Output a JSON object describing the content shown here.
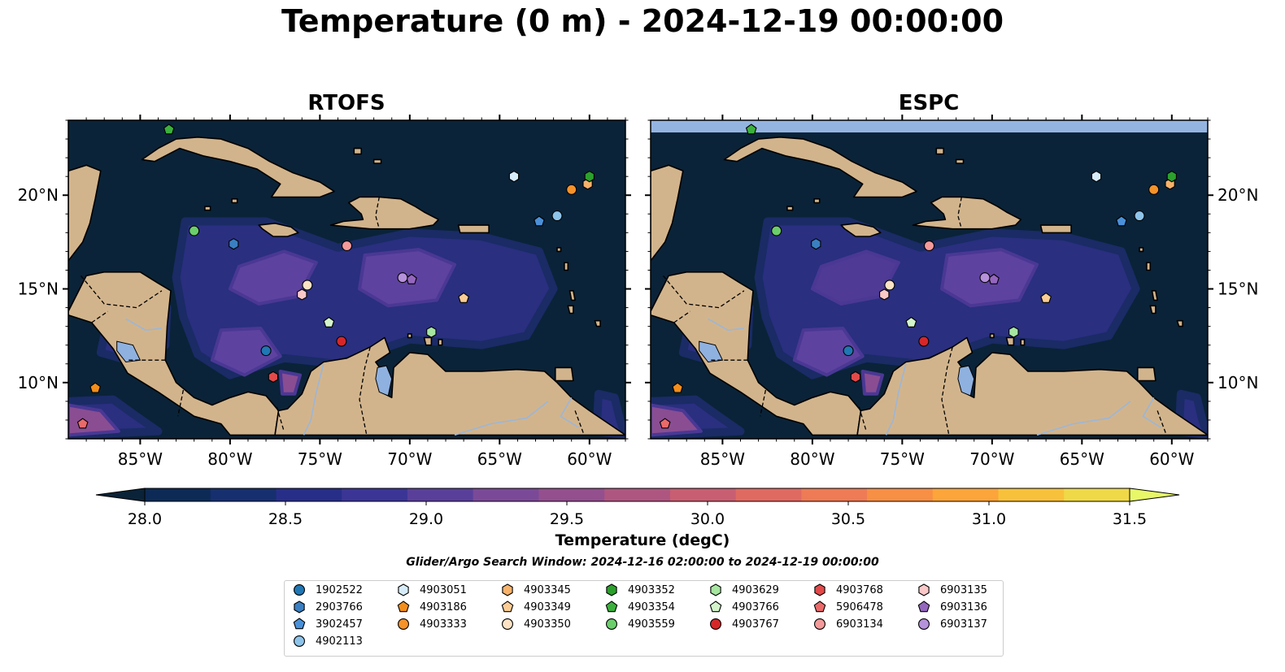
{
  "title": "Temperature (0 m) - 2024-12-19 00:00:00",
  "panels": [
    {
      "title": "RTOFS"
    },
    {
      "title": "ESPC"
    }
  ],
  "axes": {
    "x_ticks": [
      "85°W",
      "80°W",
      "75°W",
      "70°W",
      "65°W",
      "60°W"
    ],
    "y_ticks": [
      "20°N",
      "15°N",
      "10°N"
    ]
  },
  "colorbar": {
    "label": "Temperature (degC)",
    "ticks": [
      "28.0",
      "28.5",
      "29.0",
      "29.5",
      "30.0",
      "30.5",
      "31.0",
      "31.5"
    ],
    "colors": [
      "#0a2338",
      "#0c2a55",
      "#162f6e",
      "#272e88",
      "#3b3596",
      "#5a3f9a",
      "#7a4a98",
      "#934f8e",
      "#ae5680",
      "#c85e72",
      "#df6a62",
      "#ee7b55",
      "#f78f45",
      "#fba53a",
      "#f8c13c",
      "#f0d948",
      "#e8f768"
    ]
  },
  "search_window": "Glider/Argo Search Window: 2024-12-16 02:00:00 to 2024-12-19 00:00:00",
  "colors": {
    "land": "#d2b48c",
    "ocean_dark": "#0a2338",
    "lake": "#8fb1e0"
  },
  "chart_data": {
    "type": "map",
    "x_range": [
      -89,
      -58
    ],
    "y_range": [
      7,
      24
    ],
    "markers": [
      {
        "id": "1902522",
        "shape": "circle",
        "color": "#1f77b4",
        "lon": -78.0,
        "lat": 11.7
      },
      {
        "id": "2903766",
        "shape": "hexagon",
        "color": "#3a7fc1",
        "lon": -79.8,
        "lat": 17.4
      },
      {
        "id": "3902457",
        "shape": "pentagon",
        "color": "#4a90d9",
        "lon": -62.8,
        "lat": 18.6
      },
      {
        "id": "4902113",
        "shape": "circle",
        "color": "#8ec3ea",
        "lon": -61.8,
        "lat": 18.9
      },
      {
        "id": "4903051",
        "shape": "hexagon",
        "color": "#d6ecfb",
        "lon": -64.2,
        "lat": 21.0
      },
      {
        "id": "4903186",
        "shape": "pentagon",
        "color": "#f28e1c",
        "lon": -87.5,
        "lat": 9.7
      },
      {
        "id": "4903333",
        "shape": "circle",
        "color": "#f5922a",
        "lon": -61.0,
        "lat": 20.3
      },
      {
        "id": "4903345",
        "shape": "hexagon",
        "color": "#f7b26b",
        "lon": -60.1,
        "lat": 20.6
      },
      {
        "id": "4903349",
        "shape": "pentagon",
        "color": "#fbcd94",
        "lon": -67.0,
        "lat": 14.5
      },
      {
        "id": "4903350",
        "shape": "circle",
        "color": "#fde2c4",
        "lon": -75.7,
        "lat": 15.2
      },
      {
        "id": "4903352",
        "shape": "hexagon",
        "color": "#2ca02c",
        "lon": -60.0,
        "lat": 21.0
      },
      {
        "id": "4903354",
        "shape": "pentagon",
        "color": "#3cb03c",
        "lon": -83.4,
        "lat": 23.5
      },
      {
        "id": "4903559",
        "shape": "circle",
        "color": "#6bce6b",
        "lon": -82.0,
        "lat": 18.1
      },
      {
        "id": "4903629",
        "shape": "hexagon",
        "color": "#a6e6a0",
        "lon": -68.8,
        "lat": 12.7
      },
      {
        "id": "4903766",
        "shape": "pentagon",
        "color": "#d4f5cc",
        "lon": -74.5,
        "lat": 13.2
      },
      {
        "id": "4903767",
        "shape": "circle",
        "color": "#d62728",
        "lon": -73.8,
        "lat": 12.2
      },
      {
        "id": "4903768",
        "shape": "hexagon",
        "color": "#e24a4a",
        "lon": -77.6,
        "lat": 10.3
      },
      {
        "id": "5906478",
        "shape": "pentagon",
        "color": "#ea6a6a",
        "lon": -88.2,
        "lat": 7.8
      },
      {
        "id": "6903134",
        "shape": "circle",
        "color": "#f49a9a",
        "lon": -73.5,
        "lat": 17.3
      },
      {
        "id": "6903135",
        "shape": "hexagon",
        "color": "#fbc8c8",
        "lon": -76.0,
        "lat": 14.7
      },
      {
        "id": "6903136",
        "shape": "pentagon",
        "color": "#9467bd",
        "lon": -69.9,
        "lat": 15.5
      },
      {
        "id": "6903137",
        "shape": "circle",
        "color": "#b692da",
        "lon": -70.4,
        "lat": 15.6
      }
    ]
  }
}
